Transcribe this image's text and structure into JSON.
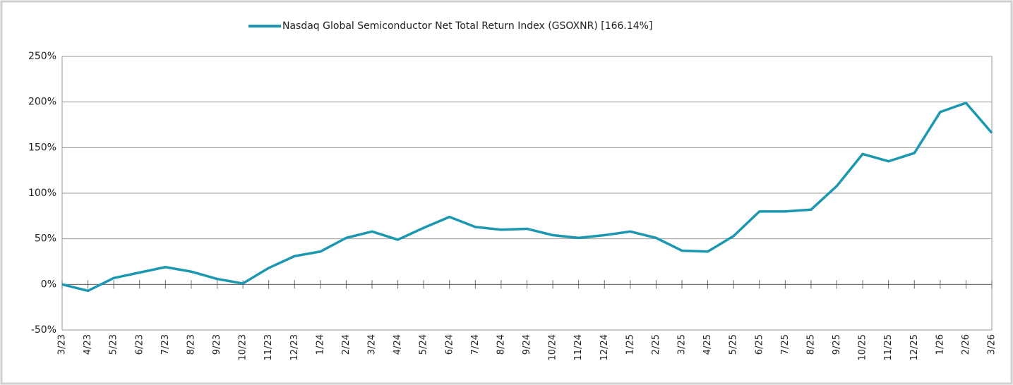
{
  "chart_data": {
    "type": "line",
    "categories": [
      "3/23",
      "4/23",
      "5/23",
      "6/23",
      "7/23",
      "8/23",
      "9/23",
      "10/23",
      "11/23",
      "12/23",
      "1/24",
      "2/24",
      "3/24",
      "4/24",
      "5/24",
      "6/24",
      "7/24",
      "8/24",
      "9/24",
      "10/24",
      "11/24",
      "12/24",
      "1/25",
      "2/25",
      "3/25",
      "4/25",
      "5/25",
      "6/25",
      "7/25",
      "8/25",
      "9/25",
      "10/25",
      "11/25",
      "12/25",
      "1/26",
      "2/26",
      "3/26"
    ],
    "series": [
      {
        "name": "Nasdaq Global Semiconductor Net Total Return Index (GSOXNR) [166.14%]",
        "color": "#1b98b0",
        "values": [
          0,
          -7,
          7,
          13,
          19,
          14,
          6,
          1,
          18,
          31,
          36,
          51,
          58,
          49,
          62,
          74,
          63,
          60,
          61,
          54,
          51,
          54,
          58,
          51,
          37,
          36,
          53,
          80,
          80,
          82,
          108,
          143,
          135,
          144,
          189,
          199,
          166.14
        ]
      }
    ],
    "ylim": [
      -50,
      250
    ],
    "yticks": [
      {
        "value": -50,
        "label": "-50%"
      },
      {
        "value": 0,
        "label": "0%"
      },
      {
        "value": 50,
        "label": "50%"
      },
      {
        "value": 100,
        "label": "100%"
      },
      {
        "value": 150,
        "label": "150%"
      },
      {
        "value": 200,
        "label": "200%"
      },
      {
        "value": 250,
        "label": "250%"
      }
    ],
    "grid": true
  }
}
